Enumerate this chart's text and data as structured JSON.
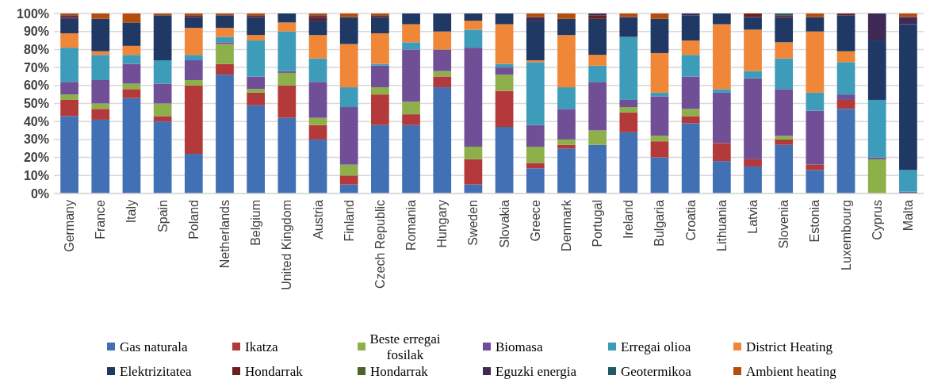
{
  "chart_data": {
    "type": "bar",
    "stacked": true,
    "categories": [
      "Germany",
      "France",
      "Italy",
      "Spain",
      "Poland",
      "Netherlands",
      "Belgium",
      "United Kingdom",
      "Austria",
      "Finland",
      "Czech Republic",
      "Romania",
      "Hungary",
      "Sweden",
      "Slovakia",
      "Greece",
      "Denmark",
      "Portugal",
      "Ireland",
      "Bulgaria",
      "Croatia",
      "Lithuania",
      "Latvia",
      "Slovenia",
      "Estonia",
      "Luxembourg",
      "Cyprus",
      "Malta"
    ],
    "ylim": [
      0,
      100
    ],
    "yticks": [
      {
        "value": 0,
        "label": "0%"
      },
      {
        "value": 10,
        "label": "10%"
      },
      {
        "value": 20,
        "label": "20%"
      },
      {
        "value": 30,
        "label": "30%"
      },
      {
        "value": 40,
        "label": "40%"
      },
      {
        "value": 50,
        "label": "50%"
      },
      {
        "value": 60,
        "label": "60%"
      },
      {
        "value": 70,
        "label": "70%"
      },
      {
        "value": 80,
        "label": "80%"
      },
      {
        "value": 90,
        "label": "90%"
      },
      {
        "value": 100,
        "label": "100%"
      }
    ],
    "grid": "y",
    "legend": "bottom",
    "series": [
      {
        "name": "Gas naturala",
        "color": "#4170b4",
        "values": [
          43,
          41,
          53,
          40,
          22,
          66,
          49,
          42,
          30,
          5,
          38,
          38,
          59,
          5,
          37,
          14,
          25,
          27,
          34,
          20,
          39,
          18,
          15,
          27,
          13,
          47,
          0,
          0
        ]
      },
      {
        "name": "Ikatza",
        "color": "#b3393b",
        "values": [
          9,
          6,
          5,
          3,
          38,
          6,
          7,
          18,
          8,
          5,
          17,
          6,
          6,
          14,
          20,
          3,
          2,
          0,
          11,
          9,
          4,
          10,
          4,
          3,
          3,
          5,
          0,
          0
        ]
      },
      {
        "name": "Beste erregai fosilak",
        "color": "#8db04a",
        "values": [
          3,
          3,
          3,
          7,
          3,
          11,
          2,
          7,
          4,
          6,
          4,
          7,
          3,
          7,
          9,
          9,
          3,
          8,
          3,
          3,
          4,
          0,
          0,
          2,
          0,
          0,
          19,
          0
        ]
      },
      {
        "name": "Biomasa",
        "color": "#704f96",
        "values": [
          7,
          13,
          11,
          11,
          11,
          1,
          7,
          1,
          20,
          32,
          12,
          29,
          12,
          55,
          4,
          12,
          17,
          27,
          4,
          22,
          18,
          28,
          45,
          26,
          30,
          3,
          1,
          1
        ]
      },
      {
        "name": "Erregai olioa",
        "color": "#3d9cb9",
        "values": [
          19,
          14,
          5,
          13,
          3,
          3,
          20,
          22,
          13,
          11,
          1,
          4,
          0,
          10,
          2,
          35,
          12,
          9,
          35,
          2,
          12,
          2,
          4,
          17,
          10,
          18,
          32,
          12
        ]
      },
      {
        "name": "District Heating",
        "color": "#f08738",
        "values": [
          8,
          2,
          5,
          0,
          15,
          5,
          3,
          5,
          13,
          24,
          17,
          10,
          10,
          5,
          22,
          1,
          29,
          6,
          0,
          22,
          8,
          36,
          23,
          9,
          34,
          6,
          0,
          0
        ]
      },
      {
        "name": "Elektrizitatea",
        "color": "#1f3864",
        "values": [
          8,
          18,
          13,
          25,
          6,
          7,
          10,
          5,
          8,
          15,
          9,
          6,
          10,
          4,
          6,
          22,
          9,
          20,
          11,
          19,
          14,
          6,
          7,
          14,
          8,
          20,
          33,
          81
        ]
      },
      {
        "name": "Hondarrak",
        "color": "#6b1f1f",
        "values": [
          1,
          0,
          0,
          0,
          1,
          0,
          1,
          0,
          2,
          0,
          1,
          0,
          0,
          0,
          0,
          0,
          0,
          2,
          0,
          0,
          0,
          0,
          2,
          1,
          0,
          1,
          0,
          0
        ]
      },
      {
        "name": "Hondarrak",
        "color": "#4f6228",
        "values": [
          0,
          0,
          0,
          0,
          0,
          0,
          0,
          0,
          0,
          0,
          0,
          0,
          0,
          0,
          0,
          0,
          0,
          0,
          0,
          0,
          0,
          0,
          0,
          0,
          0,
          0,
          0,
          0
        ]
      },
      {
        "name": "Eguzki energia",
        "color": "#3f2a56",
        "values": [
          1,
          0,
          0,
          0,
          0,
          0,
          0,
          0,
          1,
          0,
          0,
          0,
          0,
          0,
          0,
          2,
          0,
          1,
          0,
          0,
          1,
          0,
          0,
          0,
          0,
          0,
          15,
          4
        ]
      },
      {
        "name": "Geotermikoa",
        "color": "#215968",
        "values": [
          0,
          0,
          0,
          0,
          0,
          0,
          0,
          0,
          0,
          0,
          0,
          0,
          0,
          0,
          0,
          0,
          0,
          0,
          0,
          0,
          0,
          0,
          0,
          1,
          0,
          0,
          0,
          0
        ]
      },
      {
        "name": "Ambient heating",
        "color": "#b54d0c",
        "values": [
          1,
          3,
          5,
          1,
          1,
          1,
          1,
          0,
          1,
          2,
          1,
          0,
          0,
          0,
          0,
          2,
          3,
          0,
          2,
          3,
          0,
          0,
          0,
          0,
          2,
          0,
          0,
          2
        ]
      }
    ]
  }
}
